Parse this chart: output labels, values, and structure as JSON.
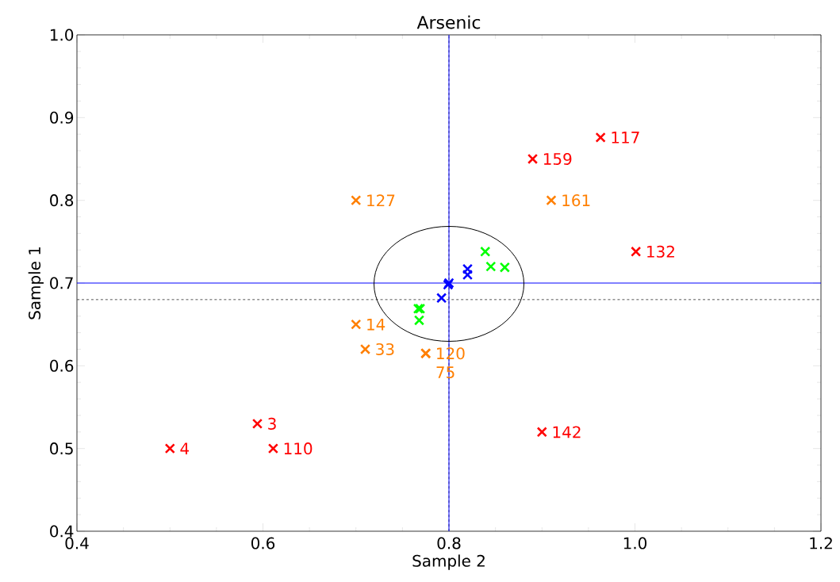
{
  "chart_data": {
    "type": "scatter",
    "title": "Arsenic",
    "xlabel": "Sample 2",
    "ylabel": "Sample 1",
    "xlim": [
      0.4,
      1.2
    ],
    "ylim": [
      0.4,
      1.0
    ],
    "xticks": [
      0.4,
      0.6,
      0.8,
      {
        "value": 1.0,
        "label": "1.0"
      },
      1.2
    ],
    "yticks": [
      0.4,
      0.5,
      0.6,
      0.7,
      0.8,
      0.9,
      {
        "value": 1.0,
        "label": "1.0"
      }
    ],
    "marker": "cross",
    "series": [
      {
        "color": "#ff0000",
        "x": [
          0.5,
          0.594,
          0.611,
          0.89,
          0.963,
          1.001,
          0.9
        ],
        "values": [
          0.5,
          0.53,
          0.5,
          0.85,
          0.876,
          0.738,
          0.52
        ]
      },
      {
        "color": "#ff7f00",
        "x": [
          0.7,
          0.91,
          0.7,
          0.71,
          0.775,
          0.775
        ],
        "values": [
          0.8,
          0.8,
          0.65,
          0.62,
          0.615,
          0.615
        ]
      },
      {
        "color": "#00ff00",
        "x": [
          0.839,
          0.845,
          0.86,
          0.767,
          0.769,
          0.768
        ],
        "values": [
          0.738,
          0.72,
          0.719,
          0.669,
          0.669,
          0.655
        ]
      },
      {
        "color": "#0000ff",
        "x": [
          0.82,
          0.82,
          0.799,
          0.8,
          0.792
        ],
        "values": [
          0.717,
          0.71,
          0.698,
          0.7,
          0.682
        ]
      }
    ],
    "ref_lines": [
      {
        "axis": "x",
        "value": 0.8,
        "color": "#555555",
        "line_style": "dashed"
      },
      {
        "axis": "y",
        "value": 0.68,
        "color": "#555555",
        "line_style": "dashed"
      },
      {
        "axis": "x",
        "value": 0.8,
        "color": "#0000ff",
        "line_style": "solid"
      },
      {
        "axis": "y",
        "value": 0.7,
        "color": "#0000ff",
        "line_style": "solid"
      }
    ],
    "annotations": [
      {
        "text": "4",
        "x": 0.5,
        "y": 0.5
      },
      {
        "text": "3",
        "x": 0.594,
        "y": 0.53
      },
      {
        "text": "110",
        "x": 0.611,
        "y": 0.5
      },
      {
        "text": "159",
        "x": 0.89,
        "y": 0.85
      },
      {
        "text": "117",
        "x": 0.963,
        "y": 0.876
      },
      {
        "text": "132",
        "x": 1.001,
        "y": 0.738
      },
      {
        "text": "142",
        "x": 0.9,
        "y": 0.52
      },
      {
        "text": "127",
        "x": 0.7,
        "y": 0.8
      },
      {
        "text": "161",
        "x": 0.91,
        "y": 0.8
      },
      {
        "text": "14",
        "x": 0.7,
        "y": 0.65
      },
      {
        "text": "33",
        "x": 0.71,
        "y": 0.62
      },
      {
        "text": "120",
        "x": 0.775,
        "y": 0.615
      },
      {
        "text": "75",
        "x": 0.775,
        "y": 0.615
      }
    ]
  }
}
